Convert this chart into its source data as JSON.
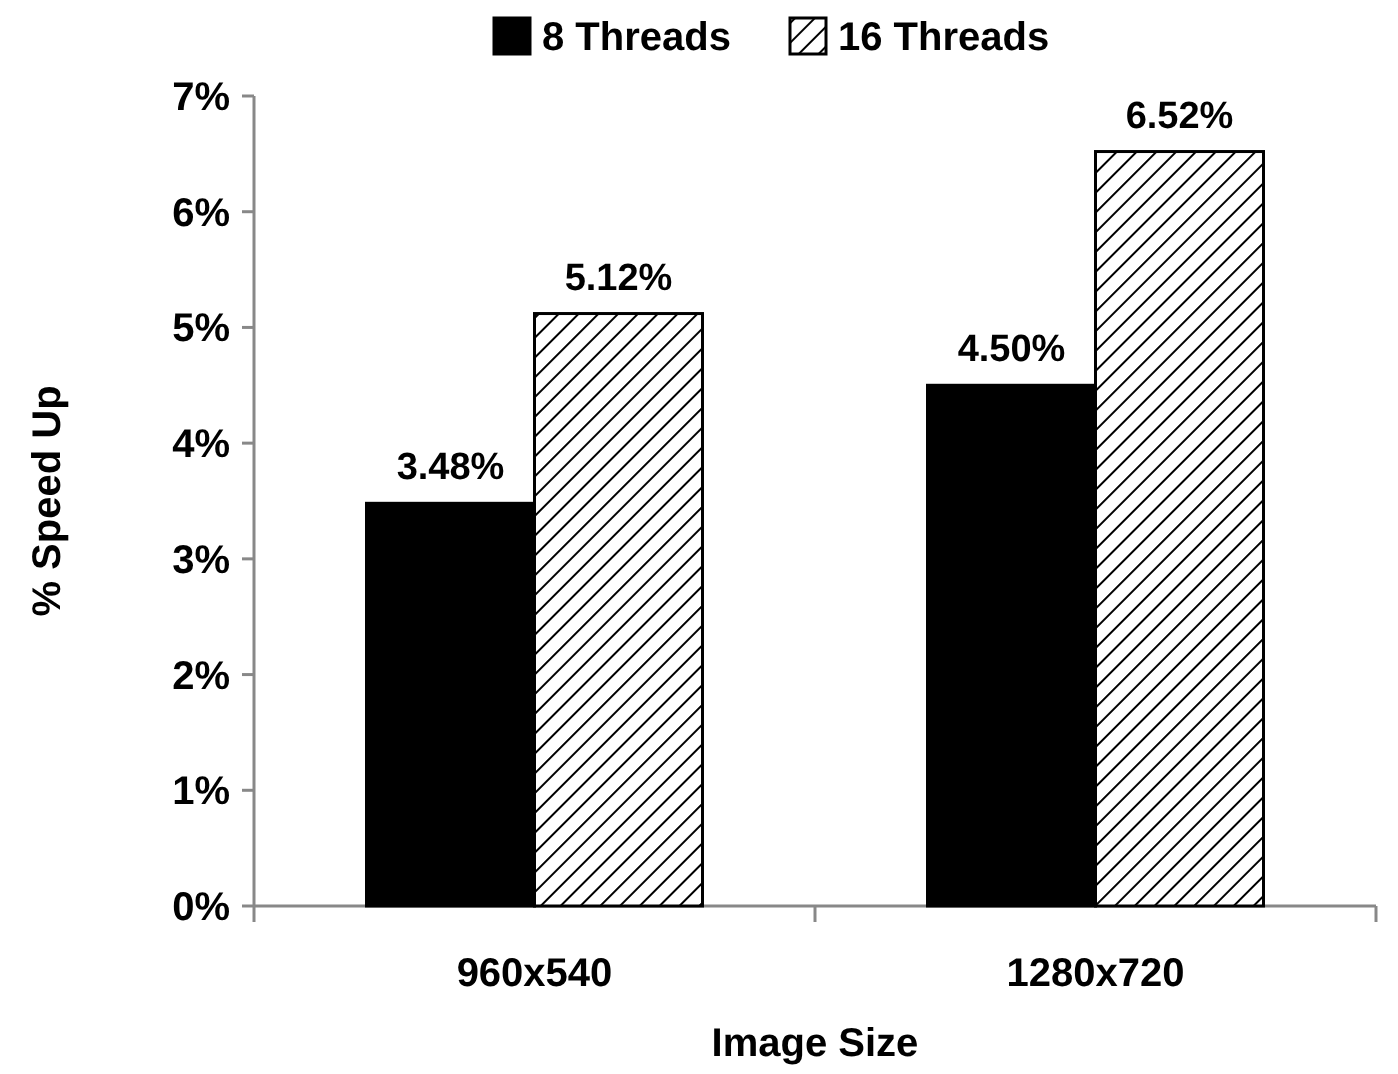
{
  "chart_data": {
    "type": "bar",
    "xlabel": "Image Size",
    "ylabel": "% Speed Up",
    "categories": [
      "960x540",
      "1280x720"
    ],
    "series": [
      {
        "name": "8 Threads",
        "color": "#000000",
        "values": [
          3.48,
          4.5
        ],
        "value_labels": [
          "3.48%",
          "4.50%"
        ]
      },
      {
        "name": "16 Threads",
        "color": "#000000",
        "values": [
          5.12,
          6.52
        ],
        "value_labels": [
          "5.12%",
          "6.52%"
        ]
      }
    ],
    "ylim": [
      0,
      7
    ],
    "yticks": [
      {
        "value": 0,
        "label": "0%"
      },
      {
        "value": 1,
        "label": "1%"
      },
      {
        "value": 2,
        "label": "2%"
      },
      {
        "value": 3,
        "label": "3%"
      },
      {
        "value": 4,
        "label": "4%"
      },
      {
        "value": 5,
        "label": "5%"
      },
      {
        "value": 6,
        "label": "6%"
      },
      {
        "value": 7,
        "label": "7%"
      }
    ],
    "grid": false,
    "legend": "top"
  }
}
